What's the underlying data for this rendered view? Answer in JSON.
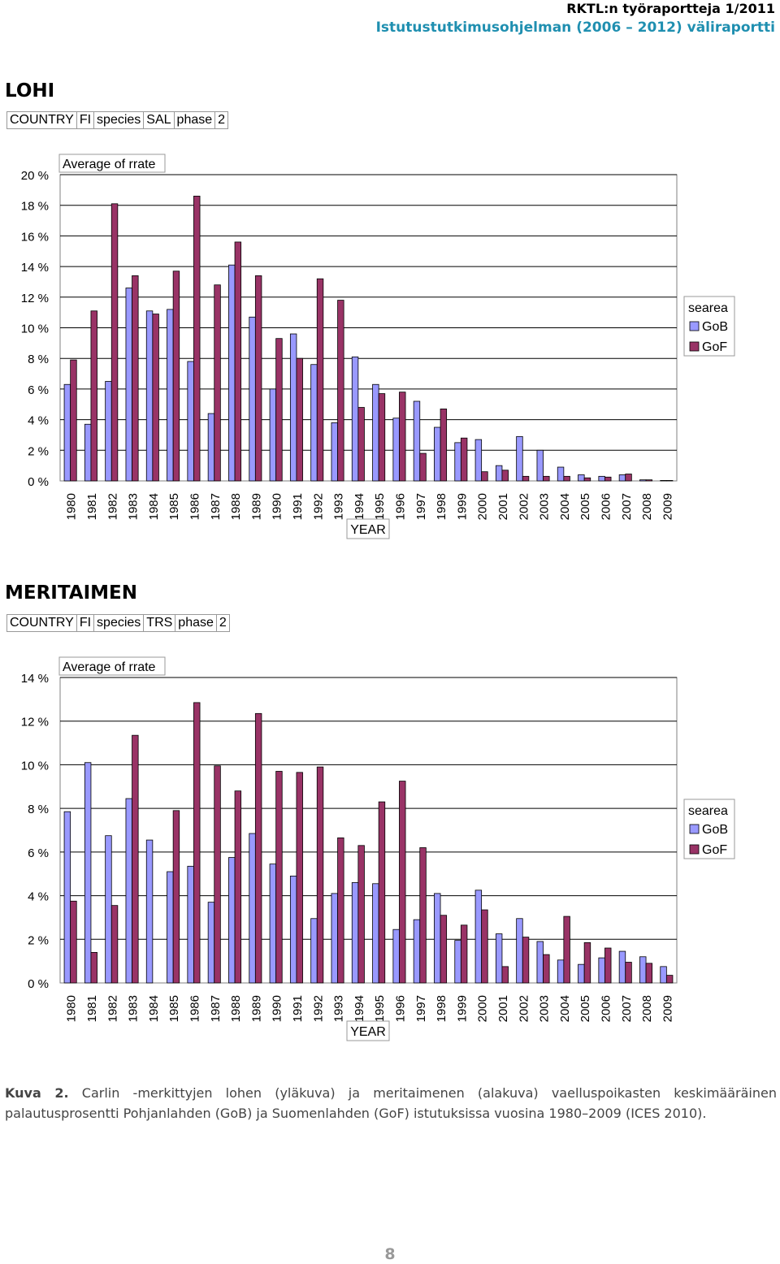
{
  "header": {
    "line1": "RKTL:n työraportteja 1/2011",
    "line2": "Istutustutkimusohjelman (2006 – 2012) väliraportti"
  },
  "sections": [
    {
      "title": "LOHI",
      "filter": [
        "COUNTRY",
        "FI",
        "species",
        "SAL",
        "phase",
        "2"
      ]
    },
    {
      "title": "MERITAIMEN",
      "filter": [
        "COUNTRY",
        "FI",
        "species",
        "TRS",
        "phase",
        "2"
      ]
    }
  ],
  "colors": {
    "gob": "#9999ff",
    "gof": "#993366",
    "grid": "#000000"
  },
  "chart_data": [
    {
      "type": "bar",
      "title": "Average of rrate",
      "xlabel": "YEAR",
      "ylabel": "",
      "ylim": [
        0,
        20
      ],
      "yticks": [
        "0 %",
        "2 %",
        "4 %",
        "6 %",
        "8 %",
        "10 %",
        "12 %",
        "14 %",
        "16 %",
        "18 %",
        "20 %"
      ],
      "legend_title": "searea",
      "legend_position": "right",
      "categories": [
        "1980",
        "1981",
        "1982",
        "1983",
        "1984",
        "1985",
        "1986",
        "1987",
        "1988",
        "1989",
        "1990",
        "1991",
        "1992",
        "1993",
        "1994",
        "1995",
        "1996",
        "1997",
        "1998",
        "1999",
        "2000",
        "2001",
        "2002",
        "2003",
        "2004",
        "2005",
        "2006",
        "2007",
        "2008",
        "2009"
      ],
      "series": [
        {
          "name": "GoB",
          "values": [
            6.3,
            3.7,
            6.5,
            12.6,
            11.1,
            11.2,
            7.8,
            4.4,
            14.1,
            10.7,
            6.0,
            9.6,
            7.6,
            3.8,
            8.1,
            6.3,
            4.1,
            5.2,
            3.5,
            2.5,
            2.7,
            1.0,
            2.9,
            2.0,
            0.9,
            0.4,
            0.3,
            0.4,
            0.07,
            0.03
          ]
        },
        {
          "name": "GoF",
          "values": [
            7.9,
            11.1,
            18.1,
            13.4,
            10.9,
            13.7,
            18.6,
            12.8,
            15.6,
            13.4,
            9.3,
            8.0,
            13.2,
            11.8,
            4.8,
            5.7,
            5.8,
            1.8,
            4.7,
            2.8,
            0.6,
            0.7,
            0.3,
            0.3,
            0.3,
            0.2,
            0.25,
            0.45,
            0.07,
            0.03
          ]
        }
      ]
    },
    {
      "type": "bar",
      "title": "Average of rrate",
      "xlabel": "YEAR",
      "ylabel": "",
      "ylim": [
        0,
        14
      ],
      "yticks": [
        "0 %",
        "2 %",
        "4 %",
        "6 %",
        "8 %",
        "10 %",
        "12 %",
        "14 %"
      ],
      "legend_title": "searea",
      "legend_position": "right",
      "categories": [
        "1980",
        "1981",
        "1982",
        "1983",
        "1984",
        "1985",
        "1986",
        "1987",
        "1988",
        "1989",
        "1990",
        "1991",
        "1992",
        "1993",
        "1994",
        "1995",
        "1996",
        "1997",
        "1998",
        "1999",
        "2000",
        "2001",
        "2002",
        "2003",
        "2004",
        "2005",
        "2006",
        "2007",
        "2008",
        "2009"
      ],
      "series": [
        {
          "name": "GoB",
          "values": [
            7.85,
            10.1,
            6.75,
            8.45,
            6.55,
            5.1,
            5.35,
            3.7,
            5.75,
            6.85,
            5.45,
            4.9,
            2.95,
            4.1,
            4.6,
            4.55,
            2.45,
            2.9,
            4.1,
            1.95,
            4.25,
            2.25,
            2.95,
            1.9,
            1.05,
            0.85,
            1.15,
            1.45,
            1.2,
            0.75
          ]
        },
        {
          "name": "GoF",
          "values": [
            3.75,
            1.4,
            3.55,
            11.35,
            0,
            7.9,
            12.85,
            9.95,
            8.8,
            12.35,
            9.7,
            9.65,
            9.9,
            6.65,
            6.3,
            8.3,
            9.25,
            6.2,
            3.1,
            2.65,
            3.35,
            0.75,
            2.1,
            1.3,
            3.05,
            1.85,
            1.6,
            0.95,
            0.9,
            0.35
          ]
        }
      ]
    }
  ],
  "caption": {
    "label": "Kuva 2.",
    "text": "Carlin -merkittyjen lohen (yläkuva) ja meritaimenen (alakuva) vaelluspoikasten keskimääräinen palautusprosentti Pohjanlahden (GoB) ja Suomenlahden (GoF) istutuksissa vuosina 1980–2009 (ICES 2010)."
  },
  "page_number": "8"
}
